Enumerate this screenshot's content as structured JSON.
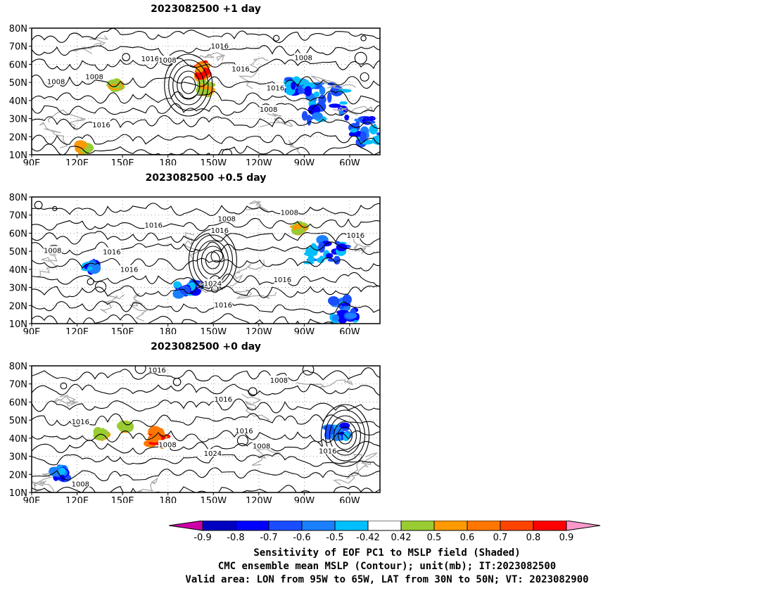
{
  "panels": [
    {
      "title": "2023082500  +1 day",
      "contour_labels": [
        "1008",
        "1016",
        "1016",
        "1008",
        "1016",
        "1016",
        "1008",
        "1016",
        "1008",
        "1008"
      ],
      "blue_patches": [
        [
          0.85,
          0.42,
          0.14,
          0.3
        ],
        [
          0.77,
          0.55,
          0.07,
          0.12
        ],
        [
          0.96,
          0.18,
          0.08,
          0.22
        ]
      ],
      "red_patches": [
        [
          0.49,
          0.66,
          0.02,
          0.12
        ]
      ],
      "green_patches": [
        [
          0.5,
          0.52,
          0.02,
          0.1
        ],
        [
          0.15,
          0.05,
          0.02,
          0.06
        ],
        [
          0.24,
          0.55,
          0.015,
          0.04
        ]
      ]
    },
    {
      "title": "2023082500  +0.5 day",
      "contour_labels": [
        "1008",
        "1016",
        "1008",
        "1016",
        "1016",
        "1008",
        "1016",
        "1016",
        "1024",
        "1016",
        "1016"
      ],
      "blue_patches": [
        [
          0.85,
          0.57,
          0.12,
          0.2
        ],
        [
          0.9,
          0.1,
          0.08,
          0.2
        ],
        [
          0.45,
          0.28,
          0.07,
          0.1
        ],
        [
          0.17,
          0.45,
          0.02,
          0.04
        ]
      ],
      "red_patches": [],
      "green_patches": [
        [
          0.77,
          0.75,
          0.02,
          0.04
        ]
      ]
    },
    {
      "title": "2023082500  +0 day",
      "contour_labels": [
        "1016",
        "1008",
        "1016",
        "1016",
        "1008",
        "1024",
        "1016",
        "1008",
        "1016",
        "1008"
      ],
      "blue_patches": [
        [
          0.88,
          0.48,
          0.06,
          0.1
        ],
        [
          0.08,
          0.15,
          0.03,
          0.08
        ]
      ],
      "red_patches": [
        [
          0.36,
          0.44,
          0.04,
          0.12
        ]
      ],
      "green_patches": [
        [
          0.2,
          0.46,
          0.02,
          0.04
        ],
        [
          0.27,
          0.52,
          0.02,
          0.04
        ]
      ]
    }
  ],
  "axes": {
    "lon_ticks": [
      "90E",
      "120E",
      "150E",
      "180",
      "150W",
      "120W",
      "90W",
      "60W"
    ],
    "lat_ticks": [
      "80N",
      "70N",
      "60N",
      "50N",
      "40N",
      "30N",
      "20N",
      "10N"
    ],
    "lon_range": [
      90,
      320
    ],
    "lat_range": [
      10,
      80
    ]
  },
  "colorbar": {
    "colors": [
      "#cc00aa",
      "#0000c0",
      "#0000ff",
      "#1a4dff",
      "#1a80ff",
      "#00bfff",
      "#ffffff",
      "#99cc33",
      "#ff9900",
      "#ff7700",
      "#ff4400",
      "#ff0000",
      "#ff99cc"
    ],
    "labels": [
      "-0.9",
      "-0.8",
      "-0.7",
      "-0.6",
      "-0.5",
      "-0.42",
      "0.42",
      "0.5",
      "0.6",
      "0.7",
      "0.8",
      "0.9"
    ]
  },
  "caption": {
    "line1": "Sensitivity of EOF PC1 to MSLP field (Shaded)",
    "line2": "CMC ensemble mean MSLP (Contour); unit(mb); IT:2023082500",
    "line3": "Valid area: LON from 95W to 65W, LAT from 30N to 50N; VT: 2023082900"
  }
}
